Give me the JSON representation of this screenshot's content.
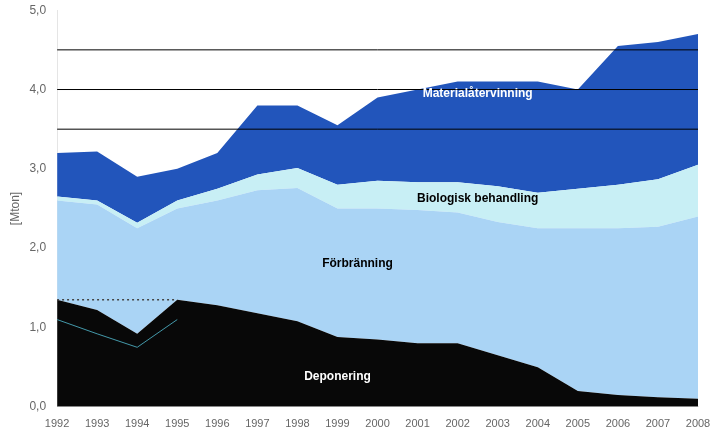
{
  "chart_data": {
    "type": "area",
    "stacked": true,
    "grid": false,
    "ylabel": "[Mton]",
    "x": [
      1992,
      1993,
      1994,
      1995,
      1996,
      1997,
      1998,
      1999,
      2000,
      2001,
      2002,
      2003,
      2004,
      2005,
      2006,
      2007,
      2008
    ],
    "xlim": [
      1992,
      2008
    ],
    "xticks": [
      1992,
      1993,
      1994,
      1995,
      1996,
      1997,
      1998,
      1999,
      2000,
      2001,
      2002,
      2003,
      2004,
      2005,
      2006,
      2007,
      2008
    ],
    "ylim": [
      0.0,
      5.0
    ],
    "yticks": [
      {
        "value": 0.0,
        "label": "0,0"
      },
      {
        "value": 0.5,
        "label": ""
      },
      {
        "value": 1.0,
        "label": "1,0"
      },
      {
        "value": 1.5,
        "label": ""
      },
      {
        "value": 2.0,
        "label": "2,0"
      },
      {
        "value": 2.5,
        "label": ""
      },
      {
        "value": 3.0,
        "label": "3,0"
      },
      {
        "value": 3.5,
        "label": ""
      },
      {
        "value": 4.0,
        "label": "4,0"
      },
      {
        "value": 4.5,
        "label": ""
      },
      {
        "value": 5.0,
        "label": "5,0"
      }
    ],
    "series": [
      {
        "name": "Deponering",
        "color": "#080808",
        "values": [
          1.35,
          1.22,
          0.92,
          1.35,
          1.28,
          1.18,
          1.08,
          0.88,
          0.85,
          0.8,
          0.8,
          0.65,
          0.5,
          0.2,
          0.15,
          0.12,
          0.1
        ]
      },
      {
        "name": "Förbränning",
        "color": "#aad4f5",
        "values": [
          1.25,
          1.33,
          1.33,
          1.15,
          1.32,
          1.55,
          1.68,
          1.62,
          1.65,
          1.68,
          1.65,
          1.68,
          1.75,
          2.05,
          2.1,
          2.15,
          2.3
        ]
      },
      {
        "name": "Biologisk behandling",
        "color": "#c8eff5",
        "values": [
          0.05,
          0.05,
          0.07,
          0.1,
          0.15,
          0.2,
          0.25,
          0.3,
          0.35,
          0.35,
          0.38,
          0.45,
          0.45,
          0.5,
          0.55,
          0.6,
          0.65
        ]
      },
      {
        "name": "Materialåtervinning",
        "color": "#2255bb",
        "values": [
          0.55,
          0.62,
          0.58,
          0.4,
          0.45,
          0.87,
          0.79,
          0.75,
          1.05,
          1.17,
          1.27,
          1.32,
          1.4,
          1.25,
          1.75,
          1.73,
          1.65
        ]
      }
    ],
    "lines": [
      {
        "x": [
          1992,
          1995
        ],
        "values": [
          1.35,
          1.35
        ],
        "color": "#444444",
        "line_style": "dotted"
      },
      {
        "x": [
          1992,
          1993,
          1994,
          1995
        ],
        "values": [
          1.1,
          0.92,
          0.75,
          1.1
        ],
        "color": "#4499aa",
        "line_style": "solid"
      }
    ],
    "hlines": {
      "values": [
        3.5,
        4.0,
        4.5
      ],
      "color": "#000000"
    },
    "annotations": [
      {
        "text": "Materialåtervinning",
        "x": 2002.5,
        "y": 3.95
      },
      {
        "text": "Biologisk behandling",
        "x": 2002.5,
        "y": 2.62
      },
      {
        "text": "Förbränning",
        "x": 1999.5,
        "y": 1.8
      },
      {
        "text": "Deponering",
        "x": 1999,
        "y": 0.38
      }
    ]
  }
}
